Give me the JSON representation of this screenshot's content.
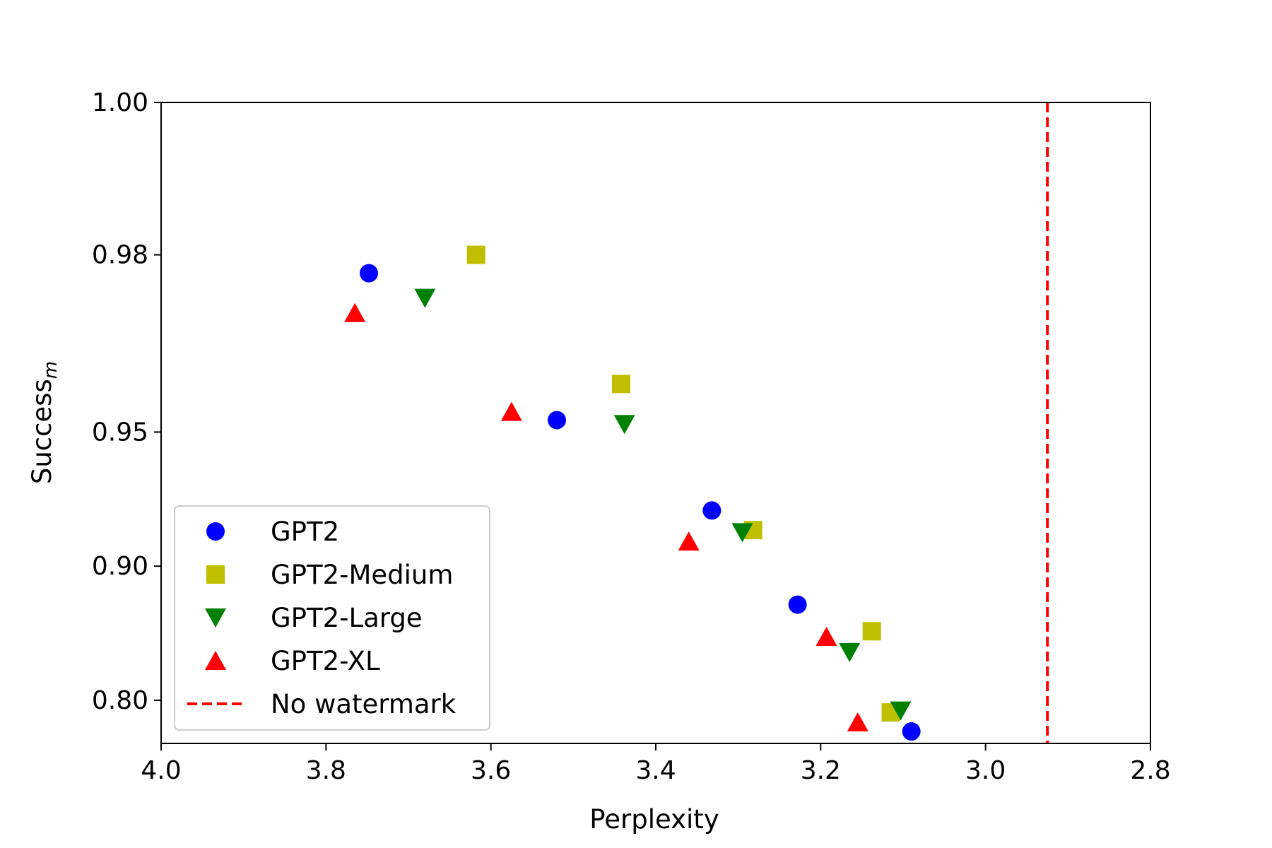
{
  "chart_data": {
    "type": "scatter",
    "xlabel": "Perplexity",
    "ylabel": "Success",
    "ylabel_subscript": "m",
    "xlim": [
      4.0,
      2.8
    ],
    "x_inverted": true,
    "ylim_display": [
      0.75,
      1.0
    ],
    "x_ticks": [
      "4.0",
      "3.8",
      "3.6",
      "3.4",
      "3.2",
      "3.0",
      "2.8"
    ],
    "y_ticks": [
      "0.80",
      "0.90",
      "0.95",
      "0.98",
      "1.00"
    ],
    "grid": false,
    "legend_position": "lower-left",
    "series": [
      {
        "name": "GPT2",
        "marker": "circle",
        "color": "#0000ff",
        "points": [
          [
            3.748,
            0.978
          ],
          [
            3.52,
            0.953
          ],
          [
            3.332,
            0.925
          ],
          [
            3.228,
            0.878
          ],
          [
            3.09,
            0.765
          ]
        ]
      },
      {
        "name": "GPT2-Medium",
        "marker": "square",
        "color": "#bfbf00",
        "points": [
          [
            3.618,
            0.98
          ],
          [
            3.442,
            0.961
          ],
          [
            3.282,
            0.917
          ],
          [
            3.138,
            0.86
          ],
          [
            3.115,
            0.787
          ]
        ]
      },
      {
        "name": "GPT2-Large",
        "marker": "triangle-down",
        "color": "#008000",
        "points": [
          [
            3.68,
            0.975
          ],
          [
            3.438,
            0.952
          ],
          [
            3.295,
            0.916
          ],
          [
            3.165,
            0.844
          ],
          [
            3.103,
            0.789
          ]
        ]
      },
      {
        "name": "GPT2-XL",
        "marker": "triangle-up",
        "color": "#ff0000",
        "points": [
          [
            3.765,
            0.973
          ],
          [
            3.575,
            0.955
          ],
          [
            3.36,
            0.912
          ],
          [
            3.193,
            0.856
          ],
          [
            3.155,
            0.776
          ]
        ]
      }
    ],
    "reference_line": {
      "name": "No watermark",
      "orientation": "vertical",
      "x": 2.925,
      "style": "dashed",
      "color": "#ff0000"
    }
  }
}
